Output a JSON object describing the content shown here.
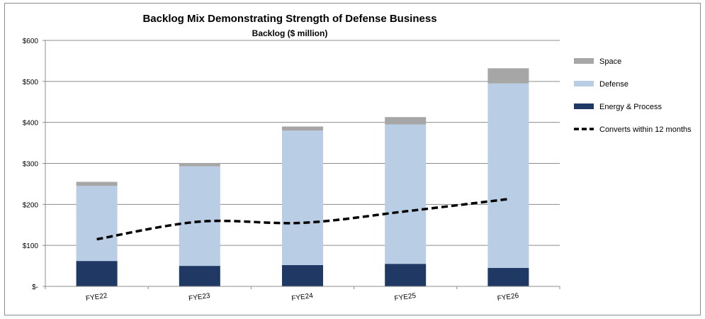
{
  "chart_data": {
    "type": "bar",
    "stacked": true,
    "title": "Backlog Mix Demonstrating Strength of Defense Business",
    "subtitle": "Backlog ($ million)",
    "categories": [
      "FYE22",
      "FYE23",
      "FYE24",
      "FYE25",
      "FYE26"
    ],
    "series": [
      {
        "name": "Energy & Process",
        "kind": "bar",
        "color": "#1f3864",
        "values": [
          62,
          50,
          52,
          55,
          45
        ]
      },
      {
        "name": "Defense",
        "kind": "bar",
        "color": "#b9cde5",
        "values": [
          183,
          243,
          328,
          340,
          450
        ]
      },
      {
        "name": "Space",
        "kind": "bar",
        "color": "#a6a6a6",
        "values": [
          10,
          8,
          10,
          18,
          37
        ]
      },
      {
        "name": "Converts within 12 months",
        "kind": "line",
        "color": "#000000",
        "dashed": true,
        "values": [
          115,
          158,
          155,
          183,
          213
        ]
      }
    ],
    "yticks": [
      "$-",
      "$100",
      "$200",
      "$300",
      "$400",
      "$500",
      "$600"
    ],
    "ylim": [
      0,
      600
    ],
    "grid": true,
    "legend_position": "right",
    "legend_order": [
      "Space",
      "Defense",
      "Energy & Process",
      "Converts within 12 months"
    ]
  }
}
